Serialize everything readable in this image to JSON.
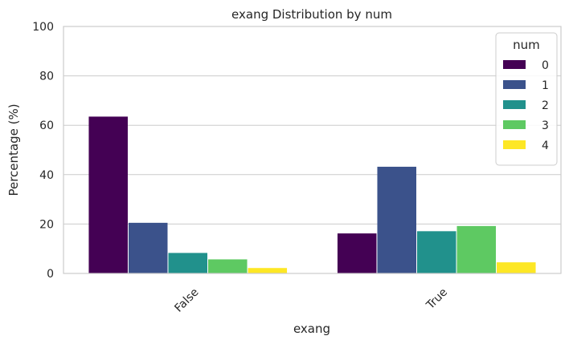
{
  "chart_data": {
    "type": "bar",
    "title": "exang Distribution by num",
    "xlabel": "exang",
    "ylabel": "Percentage (%)",
    "categories": [
      "False",
      "True"
    ],
    "ylim": [
      0,
      100
    ],
    "yticks": [
      0,
      20,
      40,
      60,
      80,
      100
    ],
    "grid": true,
    "legend": {
      "title": "num",
      "placement": "top-right"
    },
    "series": [
      {
        "name": "0",
        "color": "#440154",
        "values": [
          63.5,
          16.2
        ]
      },
      {
        "name": "1",
        "color": "#3b528b",
        "values": [
          20.5,
          43.2
        ]
      },
      {
        "name": "2",
        "color": "#21918c",
        "values": [
          8.3,
          17.1
        ]
      },
      {
        "name": "3",
        "color": "#5ec962",
        "values": [
          5.7,
          19.2
        ]
      },
      {
        "name": "4",
        "color": "#fde725",
        "values": [
          2.2,
          4.5
        ]
      }
    ]
  }
}
